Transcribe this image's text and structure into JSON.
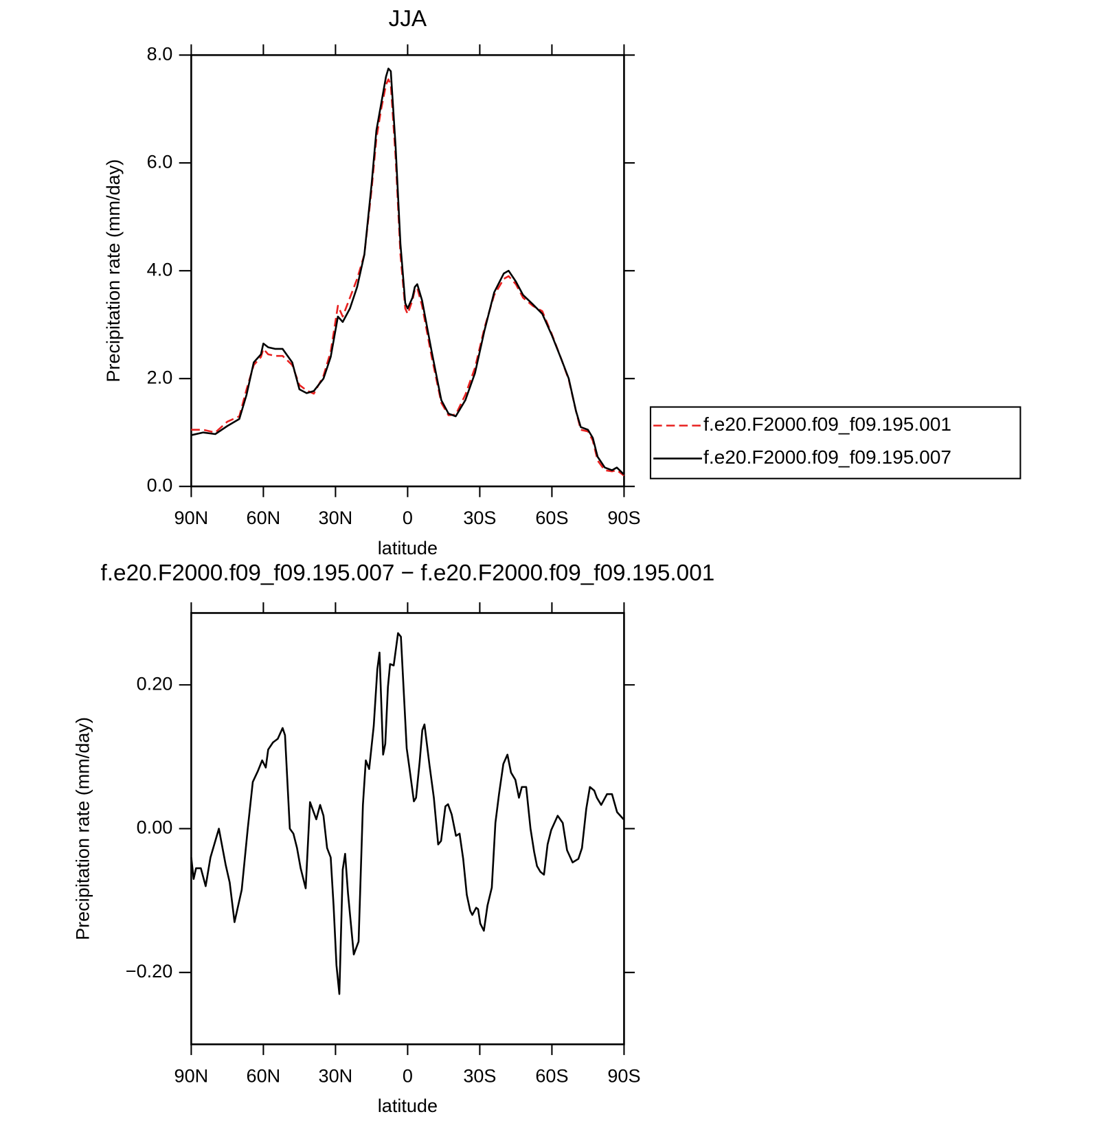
{
  "chart_data": [
    {
      "type": "line",
      "title": "JJA",
      "xlabel": "latitude",
      "ylabel": "Precipitation rate (mm/day)",
      "x": [
        90,
        85,
        80,
        75,
        70,
        67,
        64,
        61,
        60,
        58,
        55,
        52,
        48,
        45,
        42,
        39,
        35,
        32,
        29,
        27,
        24,
        21,
        18,
        15,
        13,
        11,
        9,
        8,
        7,
        5,
        3,
        1,
        0,
        -2,
        -3,
        -4,
        -6,
        -10,
        -14,
        -17,
        -20,
        -24,
        -28,
        -32,
        -36,
        -40,
        -42,
        -45,
        -48,
        -52,
        -56,
        -60,
        -64,
        -67,
        -70,
        -72,
        -75,
        -77,
        -79,
        -82,
        -85,
        -87,
        -90
      ],
      "xlim": [
        90,
        -90
      ],
      "xticks": [
        {
          "value": 90,
          "label": "90N"
        },
        {
          "value": 60,
          "label": "60N"
        },
        {
          "value": 30,
          "label": "30N"
        },
        0,
        {
          "value": -30,
          "label": "30S"
        },
        {
          "value": -60,
          "label": "60S"
        },
        {
          "value": -90,
          "label": "90S"
        }
      ],
      "ylim": [
        0,
        8
      ],
      "yticks": [
        {
          "value": 0,
          "label": "0.0"
        },
        {
          "value": 2,
          "label": "2.0"
        },
        {
          "value": 4,
          "label": "4.0"
        },
        {
          "value": 6,
          "label": "6.0"
        },
        {
          "value": 8,
          "label": "8.0"
        }
      ],
      "legend": "right",
      "series": [
        {
          "name": "f.e20.F2000.f09_f09.195.001",
          "color": "#e8201f",
          "line_style": "dashed",
          "values": [
            1.05,
            1.05,
            1.0,
            1.2,
            1.3,
            1.8,
            2.25,
            2.4,
            2.55,
            2.45,
            2.42,
            2.42,
            2.25,
            1.88,
            1.78,
            1.72,
            2.05,
            2.5,
            3.35,
            3.15,
            3.5,
            3.85,
            4.3,
            5.5,
            6.45,
            7.0,
            7.45,
            7.55,
            7.45,
            6.1,
            4.3,
            3.3,
            3.2,
            3.45,
            3.65,
            3.68,
            3.35,
            2.4,
            1.55,
            1.32,
            1.33,
            1.7,
            2.2,
            2.95,
            3.55,
            3.85,
            3.9,
            3.75,
            3.5,
            3.35,
            3.25,
            2.82,
            2.35,
            1.98,
            1.4,
            1.05,
            1.02,
            0.85,
            0.48,
            0.3,
            0.28,
            0.3,
            0.2
          ]
        },
        {
          "name": "f.e20.F2000.f09_f09.195.007",
          "color": "#000000",
          "line_style": "solid",
          "values": [
            0.95,
            1.0,
            0.97,
            1.12,
            1.25,
            1.7,
            2.3,
            2.45,
            2.65,
            2.58,
            2.55,
            2.55,
            2.3,
            1.8,
            1.73,
            1.77,
            2.0,
            2.4,
            3.15,
            3.05,
            3.3,
            3.7,
            4.3,
            5.6,
            6.6,
            7.1,
            7.6,
            7.75,
            7.7,
            6.3,
            4.5,
            3.4,
            3.3,
            3.5,
            3.7,
            3.75,
            3.45,
            2.5,
            1.6,
            1.35,
            1.3,
            1.6,
            2.1,
            2.9,
            3.6,
            3.95,
            4.0,
            3.8,
            3.55,
            3.38,
            3.2,
            2.8,
            2.35,
            2.0,
            1.4,
            1.1,
            1.05,
            0.9,
            0.55,
            0.35,
            0.3,
            0.35,
            0.22
          ]
        }
      ]
    },
    {
      "type": "line",
      "title": "f.e20.F2000.f09_f09.195.007 − f.e20.F2000.f09_f09.195.001",
      "xlabel": "latitude",
      "ylabel": "Precipitation rate (mm/day)",
      "x": [
        90,
        89,
        88,
        86,
        84,
        82,
        78.5,
        75.7,
        74,
        72,
        69,
        66.5,
        64.4,
        62.3,
        60.5,
        59,
        58,
        56,
        54,
        52,
        51,
        49,
        47.5,
        46,
        44.5,
        42.4,
        40.6,
        38,
        36.4,
        35,
        33.5,
        32,
        30.8,
        29.6,
        28.4,
        27,
        26,
        24.8,
        22.4,
        20.4,
        18.6,
        17.4,
        16,
        14.1,
        12.6,
        11.7,
        10.2,
        9.3,
        8.2,
        7.3,
        5.8,
        4,
        2.8,
        0.4,
        -0.8,
        -2.6,
        -3.5,
        -5,
        -6.1,
        -7,
        -9.1,
        -10.9,
        -12.7,
        -13.9,
        -15.7,
        -16.8,
        -18.3,
        -20.1,
        -21.6,
        -23.1,
        -24.6,
        -26,
        -26.9,
        -28.5,
        -29.3,
        -30.2,
        -31.7,
        -33.2,
        -35,
        -36.5,
        -38,
        -39.8,
        -41.5,
        -43,
        -44.8,
        -46.3,
        -47.5,
        -49.3,
        -51.1,
        -52.6,
        -53.8,
        -55.2,
        -56.7,
        -58.2,
        -59.7,
        -62.4,
        -64.5,
        -66.3,
        -68.6,
        -71,
        -72.5,
        -74.3,
        -75.8,
        -77.6,
        -78.7,
        -80.5,
        -82.9,
        -85,
        -87.1,
        -89.8
      ],
      "xlim": [
        90,
        -90
      ],
      "xticks": [
        {
          "value": 90,
          "label": "90N"
        },
        {
          "value": 60,
          "label": "60N"
        },
        {
          "value": 30,
          "label": "30N"
        },
        0,
        {
          "value": -30,
          "label": "30S"
        },
        {
          "value": -60,
          "label": "60S"
        },
        {
          "value": -90,
          "label": "90S"
        }
      ],
      "ylim": [
        -0.3,
        0.3
      ],
      "yticks": [
        {
          "value": -0.2,
          "label": "−0.20"
        },
        {
          "value": 0,
          "label": "0.00"
        },
        {
          "value": 0.2,
          "label": "0.20"
        }
      ],
      "series": [
        {
          "color": "#000000",
          "line_style": "solid",
          "values": [
            -0.04,
            -0.07,
            -0.055,
            -0.055,
            -0.08,
            -0.04,
            0.0,
            -0.05,
            -0.075,
            -0.13,
            -0.085,
            0.0,
            0.065,
            0.08,
            0.095,
            0.085,
            0.11,
            0.12,
            0.125,
            0.14,
            0.13,
            0.0,
            -0.007,
            -0.027,
            -0.055,
            -0.083,
            0.037,
            0.013,
            0.033,
            0.018,
            -0.027,
            -0.04,
            -0.107,
            -0.19,
            -0.23,
            -0.057,
            -0.035,
            -0.09,
            -0.175,
            -0.157,
            0.033,
            0.095,
            0.083,
            0.143,
            0.222,
            0.245,
            0.103,
            0.118,
            0.197,
            0.229,
            0.227,
            0.272,
            0.267,
            0.112,
            0.083,
            0.038,
            0.043,
            0.093,
            0.137,
            0.145,
            0.088,
            0.043,
            -0.022,
            -0.017,
            0.031,
            0.034,
            0.02,
            -0.01,
            -0.007,
            -0.042,
            -0.092,
            -0.114,
            -0.12,
            -0.11,
            -0.112,
            -0.132,
            -0.142,
            -0.107,
            -0.082,
            0.008,
            0.048,
            0.09,
            0.103,
            0.078,
            0.068,
            0.043,
            0.058,
            0.058,
            0.0,
            -0.032,
            -0.052,
            -0.06,
            -0.064,
            -0.022,
            -0.002,
            0.018,
            0.008,
            -0.03,
            -0.047,
            -0.042,
            -0.027,
            0.028,
            0.058,
            0.053,
            0.043,
            0.033,
            0.048,
            0.048,
            0.023,
            0.013
          ]
        }
      ]
    }
  ]
}
